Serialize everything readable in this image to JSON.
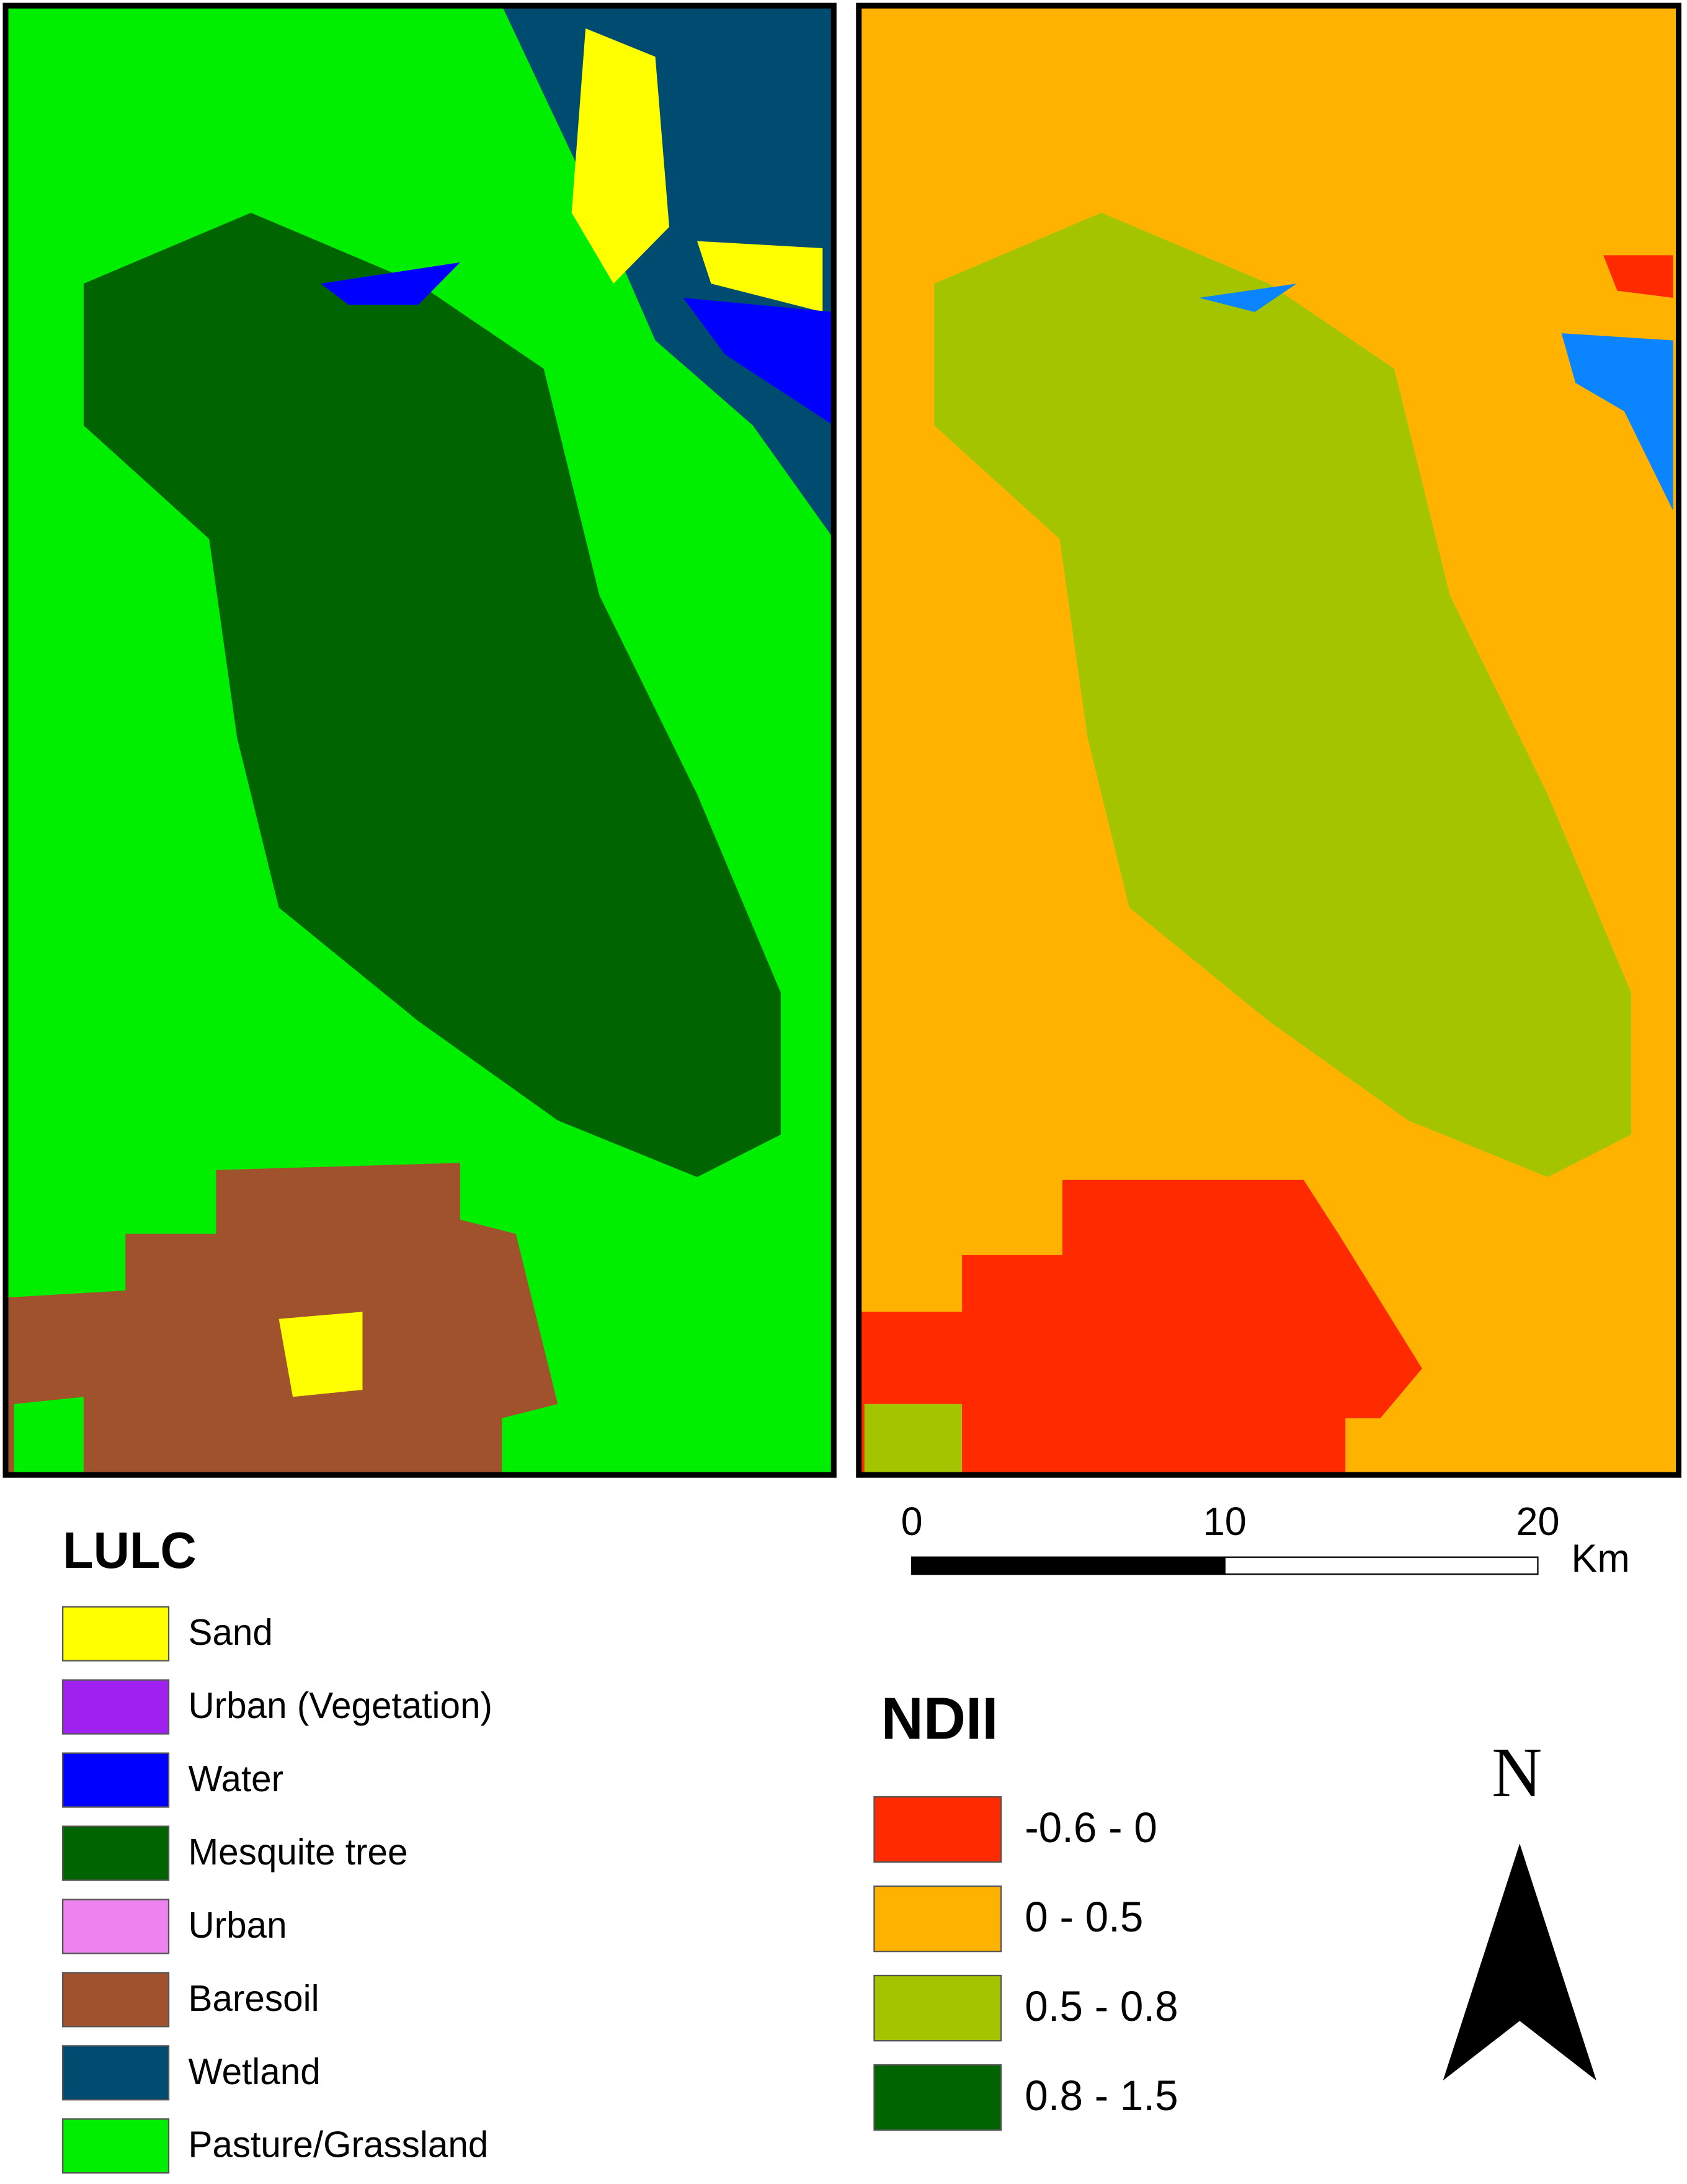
{
  "lulc_map": {
    "legend": {
      "title": "LULC",
      "items": [
        {
          "label": "Sand",
          "color": "#ffff00"
        },
        {
          "label": "Urban (Vegetation)",
          "color": "#a020f0"
        },
        {
          "label": "Water",
          "color": "#0000ff"
        },
        {
          "label": "Mesquite tree",
          "color": "#006400"
        },
        {
          "label": "Urban",
          "color": "#ee82ee"
        },
        {
          "label": "Baresoil",
          "color": "#a0522d"
        },
        {
          "label": "Wetland",
          "color": "#004c70"
        },
        {
          "label": "Pasture/Grassland",
          "color": "#00ee00"
        }
      ]
    }
  },
  "ndii_map": {
    "legend": {
      "title": "NDII",
      "items": [
        {
          "label": "-0.6 - 0",
          "color": "#ff2a00"
        },
        {
          "label": "0 - 0.5",
          "color": "#ffb300"
        },
        {
          "label": "0.5 - 0.8",
          "color": "#a4c400"
        },
        {
          "label": "0.8 - 1.5",
          "color": "#006400"
        }
      ]
    }
  },
  "scale_bar": {
    "ticks": [
      0,
      10,
      20
    ],
    "unit": "Km"
  },
  "north_arrow": {
    "label": "N"
  }
}
